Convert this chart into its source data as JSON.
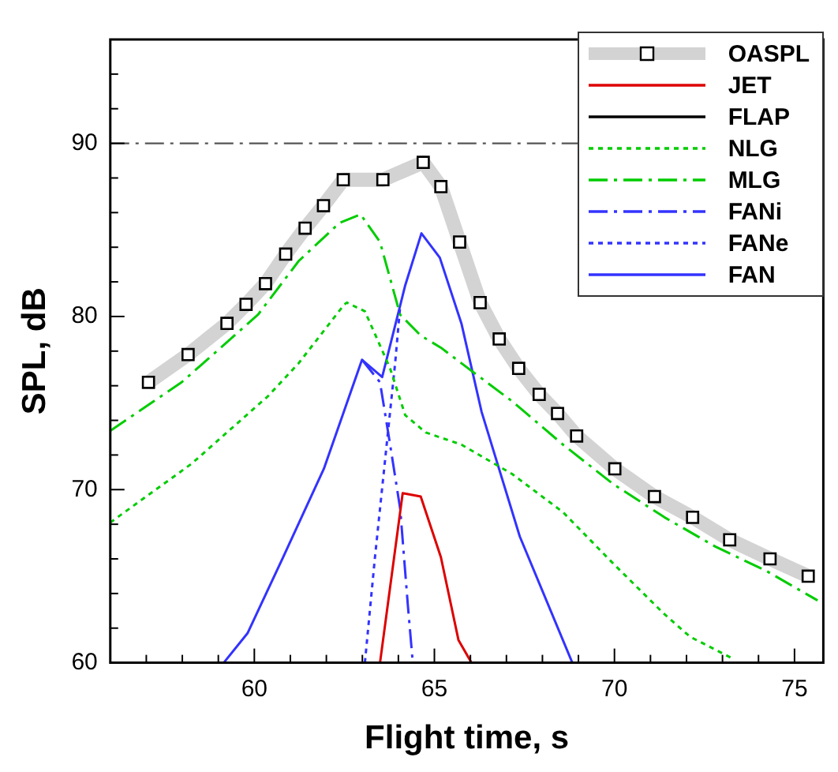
{
  "chart_data": {
    "type": "line",
    "xlabel": "Flight time, s",
    "ylabel": "SPL, dB",
    "xlim": [
      56,
      75.8
    ],
    "ylim": [
      60,
      96
    ],
    "xticks": [
      {
        "value": 57,
        "label": null
      },
      {
        "value": 58,
        "label": null
      },
      {
        "value": 59,
        "label": null
      },
      60,
      {
        "value": 61,
        "label": null
      },
      {
        "value": 62,
        "label": null
      },
      {
        "value": 63,
        "label": null
      },
      {
        "value": 64,
        "label": null
      },
      65,
      {
        "value": 66,
        "label": null
      },
      {
        "value": 67,
        "label": null
      },
      {
        "value": 68,
        "label": null
      },
      {
        "value": 69,
        "label": null
      },
      70,
      {
        "value": 71,
        "label": null
      },
      {
        "value": 72,
        "label": null
      },
      {
        "value": 73,
        "label": null
      },
      {
        "value": 74,
        "label": null
      },
      75
    ],
    "yticks": [
      60,
      {
        "value": 62,
        "label": null
      },
      {
        "value": 64,
        "label": null
      },
      {
        "value": 66,
        "label": null
      },
      {
        "value": 68,
        "label": null
      },
      70,
      {
        "value": 72,
        "label": null
      },
      {
        "value": 74,
        "label": null
      },
      {
        "value": 76,
        "label": null
      },
      {
        "value": 78,
        "label": null
      },
      80,
      {
        "value": 82,
        "label": null
      },
      {
        "value": 84,
        "label": null
      },
      {
        "value": 86,
        "label": null
      },
      {
        "value": 88,
        "label": null
      },
      90,
      {
        "value": 92,
        "label": null
      },
      {
        "value": 94,
        "label": null
      },
      {
        "value": 96,
        "label": null
      }
    ],
    "grid": false,
    "legend": "top right",
    "ref_lines": [
      {
        "axis": "y",
        "value": 90,
        "color": "#555555",
        "line_style": "dashed"
      }
    ],
    "series": [
      {
        "name": "OASPL",
        "color": "#d3d3d3",
        "marker": "square",
        "line_style": "solid",
        "x": [
          57.06,
          58.16,
          59.24,
          59.77,
          60.31,
          60.87,
          61.41,
          61.92,
          62.47,
          63.57,
          64.69,
          65.18,
          65.7,
          66.27,
          66.8,
          67.34,
          67.91,
          68.42,
          68.95,
          70.01,
          71.11,
          72.17,
          73.2,
          74.32,
          75.38
        ],
        "values": [
          76.2,
          77.8,
          79.6,
          80.7,
          81.9,
          83.6,
          85.1,
          86.4,
          87.9,
          87.9,
          88.9,
          87.5,
          84.3,
          80.8,
          78.7,
          77.0,
          75.5,
          74.4,
          73.1,
          71.2,
          69.6,
          68.4,
          67.1,
          66.0,
          65.0
        ]
      },
      {
        "name": "JET",
        "color": "#dd0000",
        "marker": "none",
        "line_style": "solid",
        "x": [
          63.49,
          64.12,
          64.62,
          65.18,
          65.67,
          66.03
        ],
        "values": [
          60,
          69.8,
          69.6,
          66.1,
          61.3,
          60
        ]
      },
      {
        "name": "FLAP",
        "color": "#000000",
        "marker": "none",
        "line_style": "solid"
      },
      {
        "name": "NLG",
        "color": "#00cc00",
        "marker": "none",
        "line_style": "dotted",
        "x": [
          56,
          58.26,
          60.38,
          61.23,
          62.5,
          62.57,
          63.07,
          63.77,
          64.19,
          64.76,
          65.75,
          67.16,
          68.57,
          69.98,
          71.39,
          72.1,
          73.23
        ],
        "values": [
          68.1,
          71.5,
          75.4,
          77.3,
          80.7,
          80.8,
          80.3,
          77.0,
          74.3,
          73.3,
          72.6,
          70.9,
          68.7,
          65.7,
          62.8,
          61.5,
          60.3
        ]
      },
      {
        "name": "MLG",
        "color": "#00cc00",
        "marker": "none",
        "line_style": "dashed",
        "x": [
          56,
          57.98,
          60.1,
          61.23,
          62.36,
          62.95,
          63.49,
          64.05,
          64.62,
          65.18,
          65.75,
          67.16,
          68.57,
          69.98,
          71.39,
          72.81,
          74.22,
          75.64
        ],
        "values": [
          73.4,
          76.2,
          80.1,
          83.2,
          85.4,
          85.9,
          84.3,
          80.1,
          78.9,
          78.2,
          77.3,
          75.1,
          72.6,
          70.3,
          68.4,
          66.7,
          65.3,
          63.6
        ]
      },
      {
        "name": "FANi",
        "color": "#3333ff",
        "marker": "none",
        "line_style": "dashed",
        "x": [
          62.99,
          63.49,
          63.77,
          64.05,
          64.26,
          64.4
        ],
        "values": [
          77.5,
          76.2,
          72.6,
          68.9,
          63.4,
          60
        ]
      },
      {
        "name": "FANe",
        "color": "#3333ff",
        "marker": "none",
        "line_style": "dotted",
        "x": [
          63.07,
          63.35,
          63.63,
          63.91,
          64.05
        ],
        "values": [
          60,
          66.1,
          71.7,
          77.3,
          80.6
        ]
      },
      {
        "name": "FAN",
        "color": "#3333ff",
        "marker": "none",
        "line_style": "solid",
        "x": [
          59.15,
          59.81,
          60.8,
          61.93,
          62.99,
          63.55,
          64.19,
          64.64,
          65.15,
          65.75,
          66.31,
          67.37,
          68.83
        ],
        "values": [
          60,
          61.7,
          66.1,
          71.2,
          77.5,
          76.5,
          81.8,
          84.8,
          83.4,
          79.6,
          74.5,
          67.3,
          60
        ]
      }
    ]
  }
}
